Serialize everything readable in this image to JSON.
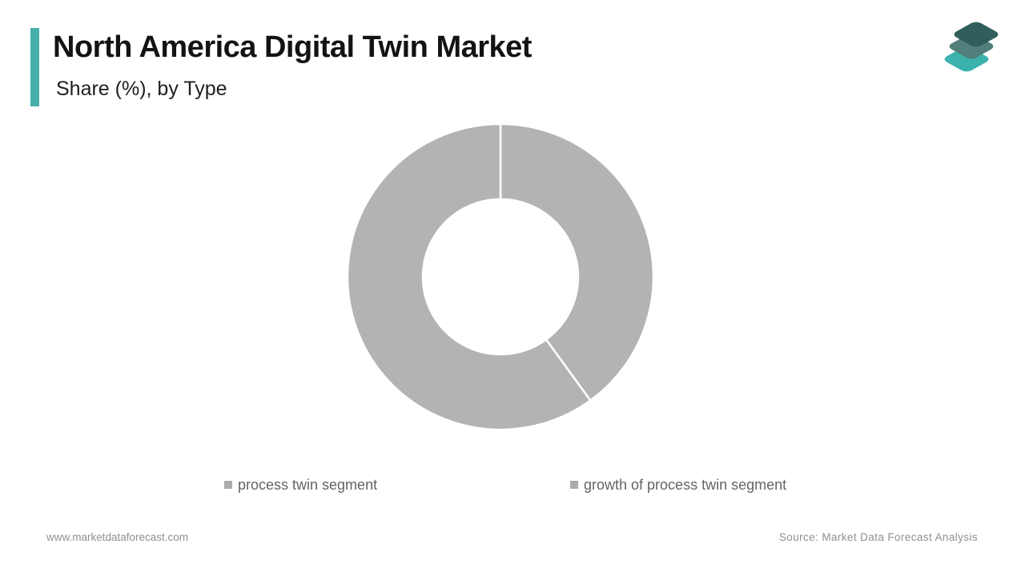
{
  "header": {
    "title": "North America Digital Twin Market",
    "subtitle": "Share (%), by Type",
    "accent_color": "#46afaa",
    "title_color": "#131313"
  },
  "logo": {
    "name": "market-data-forecast-layers-logo",
    "layer_colors": {
      "top": "#2f5e5b",
      "middle": "#527e7c",
      "bottom": "#3bb2ab"
    }
  },
  "chart_data": {
    "type": "pie",
    "variant": "donut",
    "title": "North America Digital Twin Market",
    "subtitle": "Share (%), by Type",
    "categories": [
      "process twin segment",
      "growth of process twin segment"
    ],
    "values": [
      40,
      60
    ],
    "unit": "%",
    "slice_colors": [
      "#b3b3b3",
      "#b3b3b3"
    ],
    "divider_color": "#ffffff",
    "start_angle_deg": 0,
    "inner_radius_ratio": 0.51,
    "data_labels": "none",
    "legend_position": "bottom"
  },
  "legend": {
    "marker_color": "#ababab",
    "text_color": "#646464"
  },
  "footer": {
    "website": "www.marketdataforecast.com",
    "source": "Source: Market Data Forecast Analysis"
  }
}
